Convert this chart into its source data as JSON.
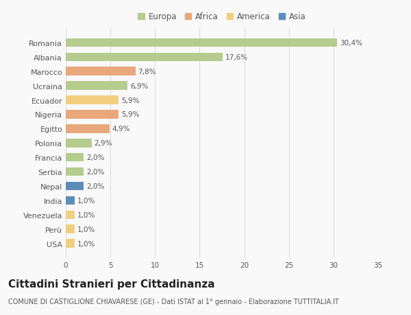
{
  "countries": [
    "Romania",
    "Albania",
    "Marocco",
    "Ucraina",
    "Ecuador",
    "Nigeria",
    "Egitto",
    "Polonia",
    "Francia",
    "Serbia",
    "Nepal",
    "India",
    "Venezuela",
    "Perù",
    "USA"
  ],
  "values": [
    30.4,
    17.6,
    7.8,
    6.9,
    5.9,
    5.9,
    4.9,
    2.9,
    2.0,
    2.0,
    2.0,
    1.0,
    1.0,
    1.0,
    1.0
  ],
  "labels": [
    "30,4%",
    "17,6%",
    "7,8%",
    "6,9%",
    "5,9%",
    "5,9%",
    "4,9%",
    "2,9%",
    "2,0%",
    "2,0%",
    "2,0%",
    "1,0%",
    "1,0%",
    "1,0%",
    "1,0%"
  ],
  "continents": [
    "Europa",
    "Europa",
    "Africa",
    "Europa",
    "America",
    "Africa",
    "Africa",
    "Europa",
    "Europa",
    "Europa",
    "Asia",
    "Asia",
    "America",
    "America",
    "America"
  ],
  "continent_colors": {
    "Europa": "#b5cc8e",
    "Africa": "#e8a87c",
    "America": "#f0d080",
    "Asia": "#5b8db8"
  },
  "legend_order": [
    "Europa",
    "Africa",
    "America",
    "Asia"
  ],
  "xlim": [
    0,
    35
  ],
  "xticks": [
    0,
    5,
    10,
    15,
    20,
    25,
    30,
    35
  ],
  "title": "Cittadini Stranieri per Cittadinanza",
  "subtitle": "COMUNE DI CASTIGLIONE CHIAVARESE (GE) - Dati ISTAT al 1° gennaio - Elaborazione TUTTITALIA.IT",
  "background_color": "#f9f9f9",
  "bar_height": 0.6,
  "title_fontsize": 11,
  "subtitle_fontsize": 7,
  "label_fontsize": 7.5,
  "ytick_fontsize": 8,
  "xtick_fontsize": 7.5,
  "legend_fontsize": 8.5,
  "grid_color": "#dddddd",
  "text_color": "#555555"
}
